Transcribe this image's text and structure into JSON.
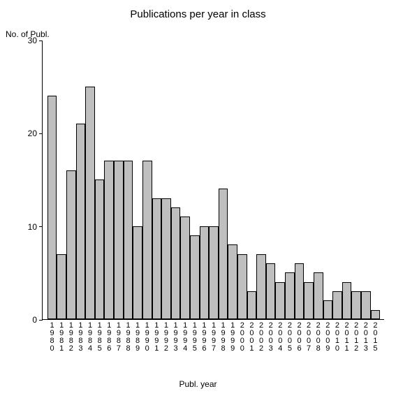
{
  "chart": {
    "type": "bar",
    "title": "Publications per year in class",
    "title_fontsize": 15,
    "ylabel": "No. of Publ.",
    "xlabel": "Publ. year",
    "label_fontsize": 12,
    "background_color": "#ffffff",
    "axis_color": "#000000",
    "bar_fill": "#bfbfbf",
    "bar_border": "#000000",
    "bar_width": 1.0,
    "ylim": [
      0,
      30
    ],
    "ytick_step": 10,
    "yticks": [
      0,
      10,
      20,
      30
    ],
    "categories": [
      "1980",
      "1981",
      "1982",
      "1983",
      "1984",
      "1985",
      "1986",
      "1987",
      "1988",
      "1989",
      "1990",
      "1991",
      "1992",
      "1993",
      "1994",
      "1995",
      "1996",
      "1997",
      "1998",
      "1999",
      "2000",
      "2001",
      "2002",
      "2003",
      "2004",
      "2005",
      "2006",
      "2007",
      "2008",
      "2009",
      "2010",
      "2011",
      "2012",
      "2013",
      "2015"
    ],
    "values": [
      24,
      7,
      16,
      21,
      25,
      15,
      17,
      17,
      17,
      10,
      17,
      13,
      13,
      12,
      11,
      9,
      10,
      10,
      14,
      8,
      7,
      3,
      7,
      6,
      4,
      5,
      6,
      4,
      5,
      2,
      3,
      4,
      3,
      3,
      1
    ]
  }
}
